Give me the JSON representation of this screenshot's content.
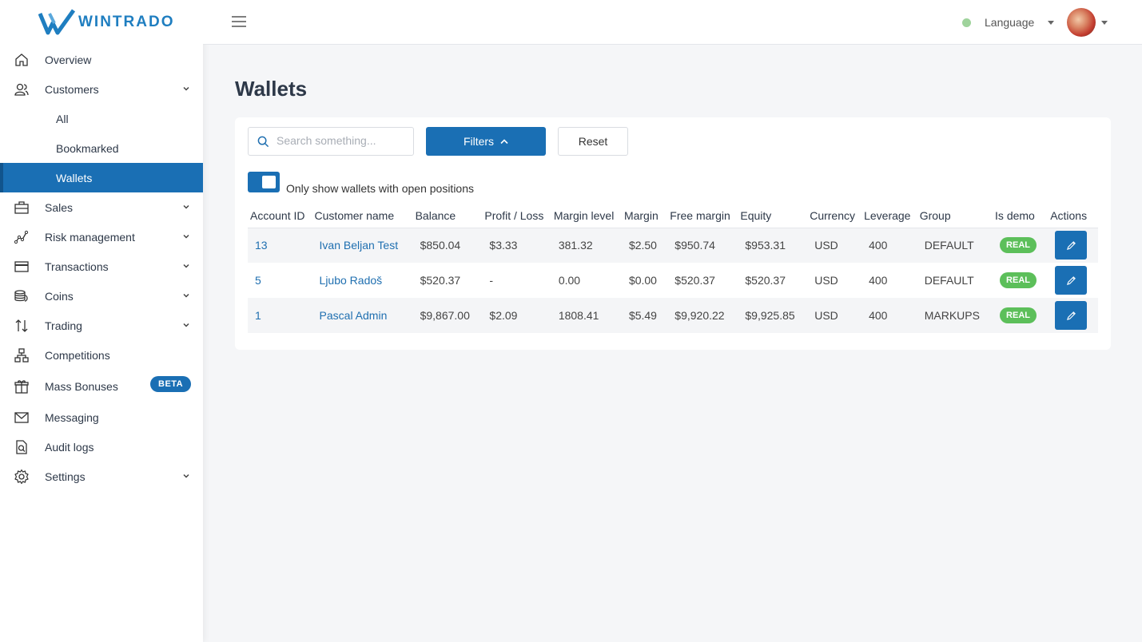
{
  "brand": {
    "name": "WINTRADO"
  },
  "sidebar": {
    "items": [
      {
        "label": "Overview",
        "icon": "home-icon"
      },
      {
        "label": "Customers",
        "icon": "users-icon",
        "expandable": true
      },
      {
        "label": "All",
        "sub": true
      },
      {
        "label": "Bookmarked",
        "sub": true
      },
      {
        "label": "Wallets",
        "sub": true,
        "active": true
      },
      {
        "label": "Sales",
        "icon": "briefcase-icon",
        "expandable": true
      },
      {
        "label": "Risk management",
        "icon": "graph-icon",
        "expandable": true
      },
      {
        "label": "Transactions",
        "icon": "credit-card-icon",
        "expandable": true
      },
      {
        "label": "Coins",
        "icon": "coins-icon",
        "expandable": true
      },
      {
        "label": "Trading",
        "icon": "arrows-icon",
        "expandable": true
      },
      {
        "label": "Competitions",
        "icon": "hierarchy-icon"
      },
      {
        "label": "Mass Bonuses",
        "icon": "gift-icon",
        "badge": "BETA"
      },
      {
        "label": "Messaging",
        "icon": "mail-icon"
      },
      {
        "label": "Audit logs",
        "icon": "document-search-icon"
      },
      {
        "label": "Settings",
        "icon": "gear-icon",
        "expandable": true
      }
    ]
  },
  "header": {
    "language_label": "Language",
    "status_color": "#9fd39c"
  },
  "page": {
    "title": "Wallets",
    "search_placeholder": "Search something...",
    "filters_label": "Filters",
    "reset_label": "Reset",
    "toggle_label": "Only show wallets with open positions"
  },
  "table": {
    "columns": [
      "Account ID",
      "Customer name",
      "Balance",
      "Profit / Loss",
      "Margin level",
      "Margin",
      "Free margin",
      "Equity",
      "Currency",
      "Leverage",
      "Group",
      "Is demo",
      "Actions"
    ],
    "rows": [
      {
        "account_id": "13",
        "customer": "Ivan Beljan Test",
        "balance": "$850.04",
        "pl": "$3.33",
        "margin_level": "381.32",
        "margin": "$2.50",
        "free_margin": "$950.74",
        "equity": "$953.31",
        "currency": "USD",
        "leverage": "400",
        "group": "DEFAULT",
        "demo": "REAL"
      },
      {
        "account_id": "5",
        "customer": "Ljubo Radoš",
        "balance": "$520.37",
        "pl": "-",
        "margin_level": "0.00",
        "margin": "$0.00",
        "free_margin": "$520.37",
        "equity": "$520.37",
        "currency": "USD",
        "leverage": "400",
        "group": "DEFAULT",
        "demo": "REAL"
      },
      {
        "account_id": "1",
        "customer": "Pascal Admin",
        "balance": "$9,867.00",
        "pl": "$2.09",
        "margin_level": "1808.41",
        "margin": "$5.49",
        "free_margin": "$9,920.22",
        "equity": "$9,925.85",
        "currency": "USD",
        "leverage": "400",
        "group": "MARKUPS",
        "demo": "REAL"
      }
    ]
  },
  "colors": {
    "accent": "#1a6fb4",
    "real_badge": "#5cbf5a"
  }
}
